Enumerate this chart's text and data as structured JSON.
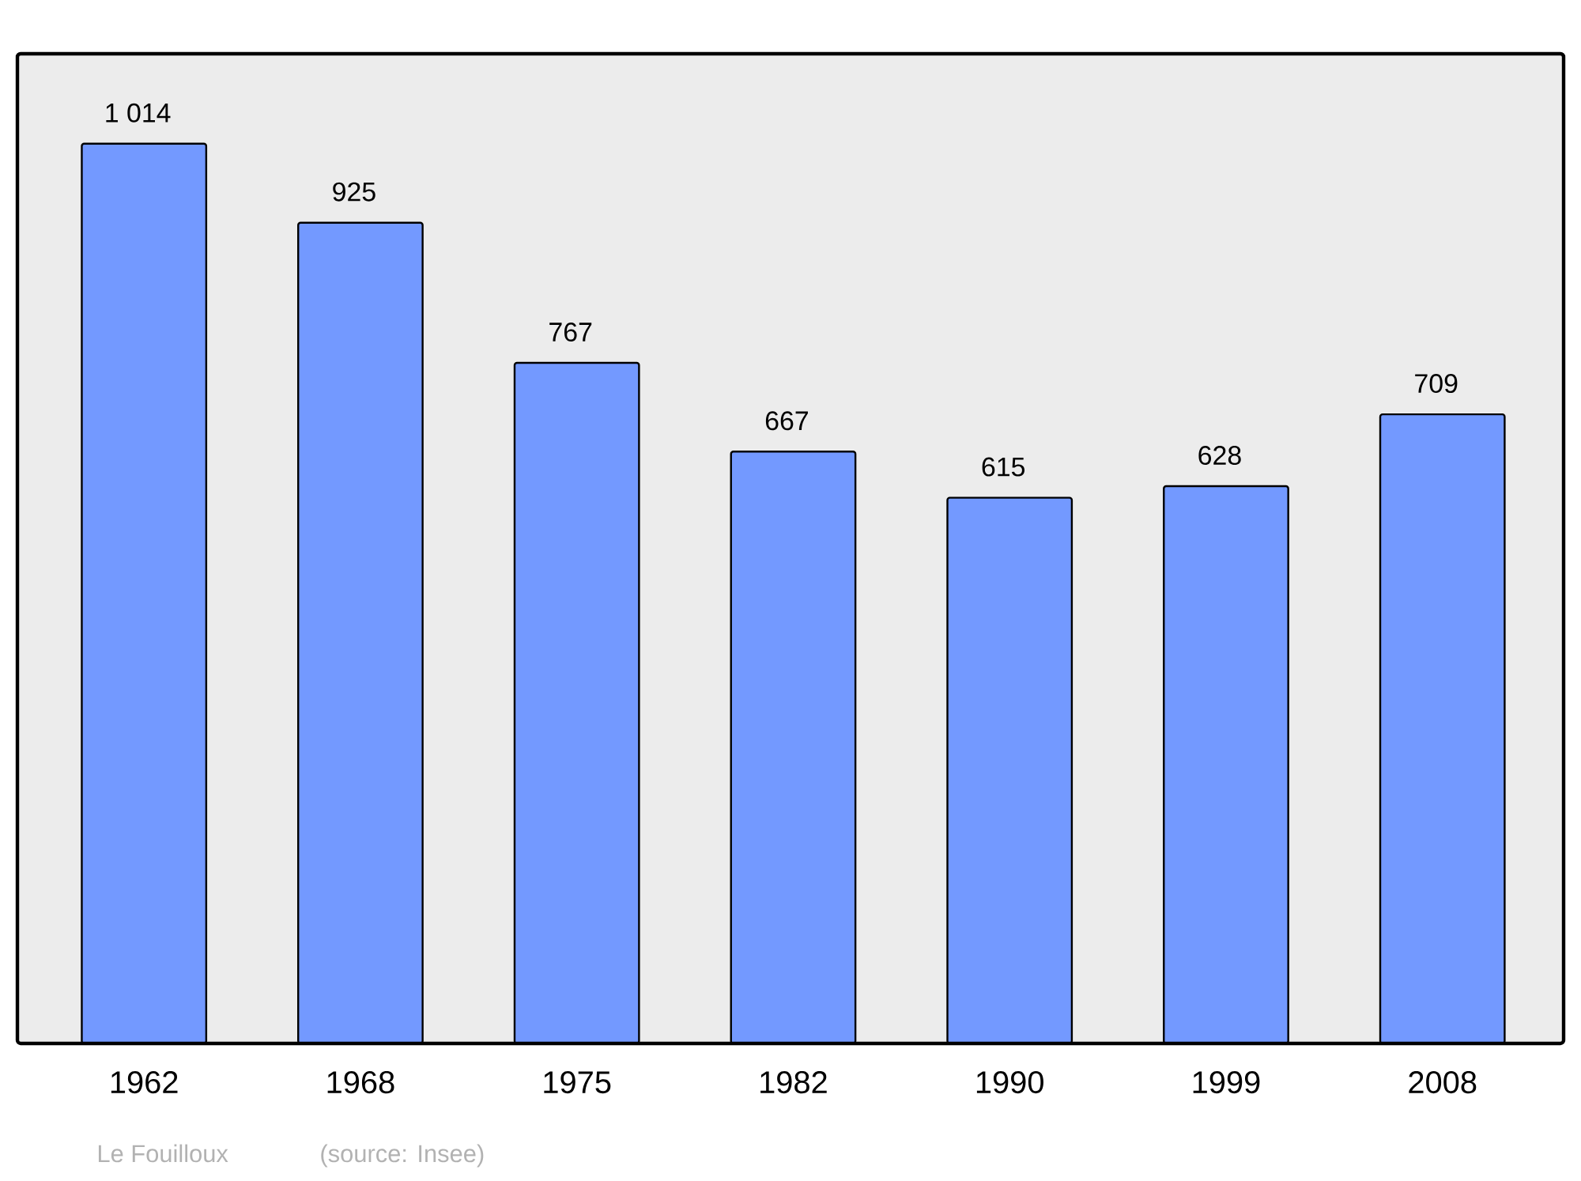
{
  "chart_data": {
    "type": "bar",
    "categories": [
      "1962",
      "1968",
      "1975",
      "1982",
      "1990",
      "1999",
      "2008"
    ],
    "values": [
      1014,
      925,
      767,
      667,
      615,
      628,
      709
    ],
    "value_labels": [
      "1 014",
      "925",
      "767",
      "667",
      "615",
      "628",
      "709"
    ],
    "color": "#7399ff",
    "annotations": [
      "Le Fouilloux",
      "(source: Insee)"
    ]
  }
}
